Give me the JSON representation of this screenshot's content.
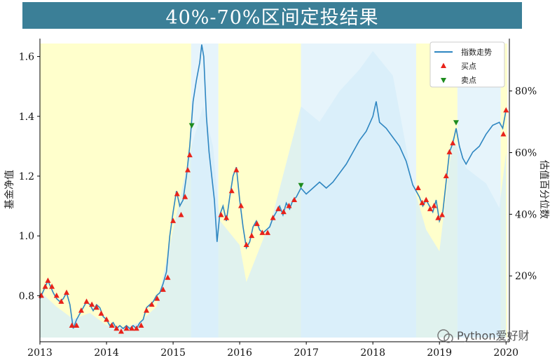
{
  "chart_data": {
    "type": "line",
    "title": "40%-70%区间定投结果",
    "ylabel_left": "基金净值",
    "ylabel_right": "估值百分位数",
    "x_ticks": [
      "2013",
      "2014",
      "2015",
      "2016",
      "2017",
      "2018",
      "2019",
      "2020"
    ],
    "y_ticks_left": [
      0.8,
      1.0,
      1.2,
      1.4,
      1.6
    ],
    "y_ticks_right": [
      "20%",
      "40%",
      "60%",
      "80%"
    ],
    "y_ticks_right_values": [
      20,
      40,
      60,
      80
    ],
    "ylim_left": [
      0.66,
      1.66
    ],
    "ylim_right": [
      0,
      97
    ],
    "xlim": [
      2013.0,
      2020.05
    ],
    "legend": {
      "placement": "top-right",
      "entries": [
        {
          "label": "指数走势",
          "marker": "line",
          "color": "#2e86c1"
        },
        {
          "label": "买点",
          "marker": "triangle-up",
          "color": "#e8231a"
        },
        {
          "label": "卖点",
          "marker": "triangle-down",
          "color": "#1e8c1e"
        }
      ]
    },
    "watermark": "Python爱好财",
    "colors": {
      "index_line": "#2e86c1",
      "valuation_fill": "#d6edf9",
      "low_zone": "#ffffcc",
      "mid_zone": "#e6f4fb",
      "buy": "#e8231a",
      "sell": "#1e8c1e"
    },
    "zones": [
      {
        "type": "low",
        "start": 2013.0,
        "end": 2015.27
      },
      {
        "type": "mid",
        "start": 2015.27,
        "end": 2015.68
      },
      {
        "type": "low",
        "start": 2015.68,
        "end": 2016.92
      },
      {
        "type": "mid",
        "start": 2016.92,
        "end": 2018.65
      },
      {
        "type": "low",
        "start": 2018.65,
        "end": 2019.27
      },
      {
        "type": "mid",
        "start": 2019.27,
        "end": 2019.92
      },
      {
        "type": "low",
        "start": 2019.92,
        "end": 2020.02
      }
    ],
    "index_series": [
      [
        2013.0,
        0.79
      ],
      [
        2013.04,
        0.81
      ],
      [
        2013.08,
        0.83
      ],
      [
        2013.12,
        0.85
      ],
      [
        2013.16,
        0.83
      ],
      [
        2013.2,
        0.81
      ],
      [
        2013.25,
        0.79
      ],
      [
        2013.3,
        0.78
      ],
      [
        2013.35,
        0.79
      ],
      [
        2013.4,
        0.81
      ],
      [
        2013.45,
        0.77
      ],
      [
        2013.5,
        0.69
      ],
      [
        2013.55,
        0.72
      ],
      [
        2013.6,
        0.74
      ],
      [
        2013.65,
        0.76
      ],
      [
        2013.7,
        0.78
      ],
      [
        2013.75,
        0.77
      ],
      [
        2013.8,
        0.75
      ],
      [
        2013.85,
        0.77
      ],
      [
        2013.9,
        0.76
      ],
      [
        2013.95,
        0.73
      ],
      [
        2014.0,
        0.72
      ],
      [
        2014.05,
        0.7
      ],
      [
        2014.1,
        0.71
      ],
      [
        2014.15,
        0.69
      ],
      [
        2014.2,
        0.7
      ],
      [
        2014.25,
        0.69
      ],
      [
        2014.3,
        0.7
      ],
      [
        2014.35,
        0.69
      ],
      [
        2014.4,
        0.7
      ],
      [
        2014.45,
        0.69
      ],
      [
        2014.5,
        0.71
      ],
      [
        2014.55,
        0.72
      ],
      [
        2014.6,
        0.76
      ],
      [
        2014.65,
        0.77
      ],
      [
        2014.7,
        0.78
      ],
      [
        2014.75,
        0.8
      ],
      [
        2014.8,
        0.81
      ],
      [
        2014.85,
        0.84
      ],
      [
        2014.9,
        0.88
      ],
      [
        2014.95,
        1.0
      ],
      [
        2015.0,
        1.08
      ],
      [
        2015.05,
        1.15
      ],
      [
        2015.1,
        1.1
      ],
      [
        2015.15,
        1.12
      ],
      [
        2015.2,
        1.2
      ],
      [
        2015.25,
        1.3
      ],
      [
        2015.3,
        1.45
      ],
      [
        2015.35,
        1.52
      ],
      [
        2015.4,
        1.58
      ],
      [
        2015.43,
        1.64
      ],
      [
        2015.46,
        1.6
      ],
      [
        2015.5,
        1.4
      ],
      [
        2015.54,
        1.28
      ],
      [
        2015.58,
        1.2
      ],
      [
        2015.62,
        1.12
      ],
      [
        2015.66,
        0.98
      ],
      [
        2015.7,
        1.07
      ],
      [
        2015.75,
        1.1
      ],
      [
        2015.8,
        1.05
      ],
      [
        2015.85,
        1.13
      ],
      [
        2015.9,
        1.2
      ],
      [
        2015.95,
        1.23
      ],
      [
        2016.0,
        1.12
      ],
      [
        2016.05,
        1.03
      ],
      [
        2016.1,
        0.96
      ],
      [
        2016.15,
        0.98
      ],
      [
        2016.2,
        1.03
      ],
      [
        2016.25,
        1.05
      ],
      [
        2016.3,
        1.02
      ],
      [
        2016.35,
        1.01
      ],
      [
        2016.4,
        1.02
      ],
      [
        2016.45,
        1.03
      ],
      [
        2016.5,
        1.06
      ],
      [
        2016.55,
        1.08
      ],
      [
        2016.6,
        1.1
      ],
      [
        2016.65,
        1.07
      ],
      [
        2016.7,
        1.11
      ],
      [
        2016.75,
        1.09
      ],
      [
        2016.8,
        1.12
      ],
      [
        2016.85,
        1.13
      ],
      [
        2016.92,
        1.16
      ],
      [
        2017.0,
        1.14
      ],
      [
        2017.1,
        1.16
      ],
      [
        2017.2,
        1.18
      ],
      [
        2017.3,
        1.16
      ],
      [
        2017.4,
        1.18
      ],
      [
        2017.5,
        1.21
      ],
      [
        2017.6,
        1.24
      ],
      [
        2017.7,
        1.28
      ],
      [
        2017.8,
        1.32
      ],
      [
        2017.9,
        1.35
      ],
      [
        2018.0,
        1.4
      ],
      [
        2018.05,
        1.45
      ],
      [
        2018.1,
        1.38
      ],
      [
        2018.2,
        1.36
      ],
      [
        2018.3,
        1.33
      ],
      [
        2018.4,
        1.3
      ],
      [
        2018.5,
        1.25
      ],
      [
        2018.6,
        1.17
      ],
      [
        2018.65,
        1.15
      ],
      [
        2018.7,
        1.13
      ],
      [
        2018.75,
        1.1
      ],
      [
        2018.8,
        1.12
      ],
      [
        2018.85,
        1.1
      ],
      [
        2018.9,
        1.08
      ],
      [
        2018.95,
        1.12
      ],
      [
        2019.0,
        1.05
      ],
      [
        2019.05,
        1.08
      ],
      [
        2019.1,
        1.18
      ],
      [
        2019.15,
        1.28
      ],
      [
        2019.2,
        1.31
      ],
      [
        2019.25,
        1.36
      ],
      [
        2019.3,
        1.3
      ],
      [
        2019.35,
        1.26
      ],
      [
        2019.4,
        1.24
      ],
      [
        2019.5,
        1.28
      ],
      [
        2019.6,
        1.3
      ],
      [
        2019.7,
        1.34
      ],
      [
        2019.8,
        1.37
      ],
      [
        2019.9,
        1.38
      ],
      [
        2019.95,
        1.36
      ],
      [
        2020.0,
        1.42
      ]
    ],
    "valuation_series": [
      [
        2013.0,
        15
      ],
      [
        2013.25,
        10
      ],
      [
        2013.5,
        6
      ],
      [
        2013.75,
        8
      ],
      [
        2014.0,
        4
      ],
      [
        2014.25,
        3
      ],
      [
        2014.5,
        5
      ],
      [
        2014.75,
        10
      ],
      [
        2015.0,
        35
      ],
      [
        2015.25,
        60
      ],
      [
        2015.45,
        75
      ],
      [
        2015.6,
        62
      ],
      [
        2015.7,
        38
      ],
      [
        2016.0,
        30
      ],
      [
        2016.1,
        18
      ],
      [
        2016.5,
        40
      ],
      [
        2016.92,
        75
      ],
      [
        2017.2,
        70
      ],
      [
        2017.5,
        80
      ],
      [
        2017.8,
        87
      ],
      [
        2018.0,
        93
      ],
      [
        2018.3,
        85
      ],
      [
        2018.6,
        50
      ],
      [
        2018.8,
        35
      ],
      [
        2019.0,
        28
      ],
      [
        2019.2,
        65
      ],
      [
        2019.4,
        55
      ],
      [
        2019.7,
        50
      ],
      [
        2019.9,
        42
      ],
      [
        2020.0,
        60
      ]
    ],
    "buy_points": [
      [
        2013.02,
        0.8
      ],
      [
        2013.08,
        0.83
      ],
      [
        2013.12,
        0.85
      ],
      [
        2013.18,
        0.83
      ],
      [
        2013.25,
        0.8
      ],
      [
        2013.32,
        0.78
      ],
      [
        2013.4,
        0.81
      ],
      [
        2013.48,
        0.7
      ],
      [
        2013.55,
        0.7
      ],
      [
        2013.62,
        0.75
      ],
      [
        2013.7,
        0.78
      ],
      [
        2013.78,
        0.77
      ],
      [
        2013.85,
        0.76
      ],
      [
        2013.92,
        0.74
      ],
      [
        2014.0,
        0.72
      ],
      [
        2014.08,
        0.7
      ],
      [
        2014.15,
        0.69
      ],
      [
        2014.22,
        0.68
      ],
      [
        2014.3,
        0.69
      ],
      [
        2014.38,
        0.69
      ],
      [
        2014.45,
        0.69
      ],
      [
        2014.52,
        0.7
      ],
      [
        2014.6,
        0.75
      ],
      [
        2014.68,
        0.77
      ],
      [
        2014.76,
        0.79
      ],
      [
        2014.85,
        0.82
      ],
      [
        2014.92,
        0.86
      ],
      [
        2015.0,
        1.05
      ],
      [
        2015.06,
        1.14
      ],
      [
        2015.12,
        1.07
      ],
      [
        2015.18,
        1.13
      ],
      [
        2015.22,
        1.22
      ],
      [
        2015.25,
        1.27
      ],
      [
        2015.72,
        1.07
      ],
      [
        2015.8,
        1.06
      ],
      [
        2015.88,
        1.15
      ],
      [
        2015.95,
        1.22
      ],
      [
        2016.02,
        1.1
      ],
      [
        2016.1,
        0.97
      ],
      [
        2016.18,
        1.0
      ],
      [
        2016.26,
        1.04
      ],
      [
        2016.34,
        1.01
      ],
      [
        2016.42,
        1.01
      ],
      [
        2016.5,
        1.06
      ],
      [
        2016.58,
        1.09
      ],
      [
        2016.66,
        1.08
      ],
      [
        2016.74,
        1.1
      ],
      [
        2016.82,
        1.12
      ],
      [
        2018.68,
        1.16
      ],
      [
        2018.74,
        1.11
      ],
      [
        2018.8,
        1.12
      ],
      [
        2018.86,
        1.09
      ],
      [
        2018.92,
        1.1
      ],
      [
        2018.98,
        1.06
      ],
      [
        2019.04,
        1.07
      ],
      [
        2019.1,
        1.2
      ],
      [
        2019.15,
        1.28
      ],
      [
        2019.2,
        1.31
      ],
      [
        2019.96,
        1.34
      ],
      [
        2020.0,
        1.42
      ]
    ],
    "sell_points": [
      [
        2015.28,
        1.37
      ],
      [
        2016.92,
        1.17
      ],
      [
        2019.25,
        1.38
      ]
    ]
  }
}
